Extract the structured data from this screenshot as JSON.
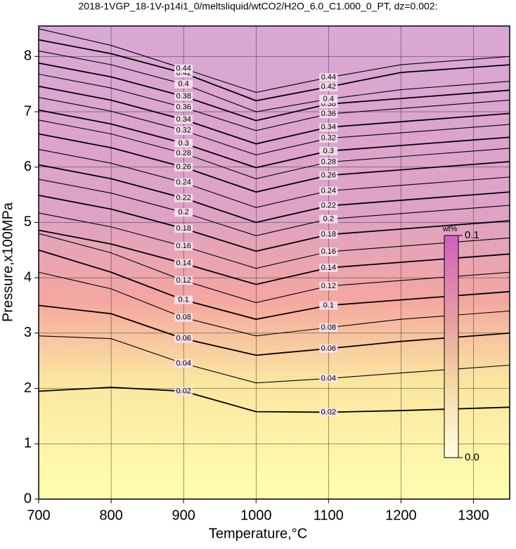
{
  "chart_data": {
    "type": "contour",
    "title": "2018-1VGP_18-1V-p14i1_0/meltsliquid/wtCO2/H2O_6.0_C1.000_0_PT, dz=0.002:",
    "xlabel": "Temperature,°C",
    "ylabel": "Pressure,x100MPa",
    "xlim": [
      700,
      1350
    ],
    "ylim": [
      0,
      8.55
    ],
    "xticks": [
      700,
      800,
      900,
      1000,
      1100,
      1200,
      1300
    ],
    "yticks": [
      0,
      1,
      2,
      3,
      4,
      5,
      6,
      7,
      8
    ],
    "grid": true,
    "color": "#000000",
    "colorbar": {
      "label": "wt%",
      "clim": [
        0,
        0.1
      ],
      "ticks": [
        {
          "value": 0,
          "label": "0.0"
        },
        0.1
      ]
    },
    "x": [
      700,
      800,
      900,
      1000,
      1100,
      1200,
      1350
    ],
    "contours": [
      {
        "level": 0.02,
        "values": [
          1.95,
          2.02,
          1.95,
          1.58,
          1.57,
          1.6,
          1.66
        ]
      },
      {
        "level": 0.04,
        "values": [
          2.95,
          2.9,
          2.45,
          2.1,
          2.18,
          2.28,
          2.42
        ]
      },
      {
        "level": 0.06,
        "values": [
          3.5,
          3.35,
          2.9,
          2.6,
          2.72,
          2.85,
          3.0
        ]
      },
      {
        "level": 0.08,
        "values": [
          4.1,
          3.8,
          3.28,
          2.95,
          3.1,
          3.25,
          3.4
        ]
      },
      {
        "level": 0.1,
        "values": [
          4.5,
          4.1,
          3.6,
          3.25,
          3.5,
          3.6,
          3.75
        ]
      },
      {
        "level": 0.12,
        "values": [
          4.8,
          4.45,
          3.95,
          3.55,
          3.85,
          3.95,
          4.1
        ]
      },
      {
        "level": 0.14,
        "values": [
          4.86,
          4.61,
          4.26,
          3.88,
          4.18,
          4.28,
          4.43
        ]
      },
      {
        "level": 0.16,
        "values": [
          5.17,
          4.92,
          4.57,
          4.17,
          4.47,
          4.57,
          4.72
        ]
      },
      {
        "level": 0.18,
        "values": [
          5.49,
          5.24,
          4.89,
          4.48,
          4.78,
          4.88,
          5.03
        ]
      },
      {
        "level": 0.2,
        "values": [
          5.78,
          5.53,
          5.18,
          4.76,
          5.06,
          5.16,
          5.31
        ]
      },
      {
        "level": 0.22,
        "values": [
          6.04,
          5.79,
          5.44,
          5.0,
          5.3,
          5.4,
          5.55
        ]
      },
      {
        "level": 0.24,
        "values": [
          6.32,
          6.07,
          5.72,
          5.27,
          5.57,
          5.67,
          5.82
        ]
      },
      {
        "level": 0.26,
        "values": [
          6.6,
          6.35,
          6.0,
          5.55,
          5.85,
          5.95,
          6.1
        ]
      },
      {
        "level": 0.28,
        "values": [
          6.85,
          6.6,
          6.25,
          5.79,
          6.09,
          6.19,
          6.34
        ]
      },
      {
        "level": 0.3,
        "values": [
          7.03,
          6.78,
          6.43,
          5.99,
          6.29,
          6.39,
          6.54
        ]
      },
      {
        "level": 0.32,
        "values": [
          7.26,
          7.01,
          6.66,
          6.22,
          6.52,
          6.62,
          6.77
        ]
      },
      {
        "level": 0.34,
        "values": [
          7.46,
          7.21,
          6.86,
          6.42,
          6.72,
          6.82,
          6.97
        ]
      },
      {
        "level": 0.36,
        "values": [
          7.68,
          7.43,
          7.08,
          6.66,
          6.96,
          7.06,
          7.21
        ]
      },
      {
        "level": 0.38,
        "values": [
          7.88,
          7.63,
          7.28,
          6.84,
          7.14,
          7.24,
          7.39
        ]
      },
      {
        "level": 0.4,
        "values": [
          8.1,
          7.85,
          7.5,
          7.0,
          7.23,
          7.4,
          7.55
        ]
      },
      {
        "level": 0.42,
        "values": [
          8.3,
          8.05,
          7.7,
          7.2,
          7.45,
          7.71,
          7.85
        ]
      },
      {
        "level": 0.44,
        "values": [
          8.5,
          8.2,
          7.78,
          7.35,
          7.62,
          7.85,
          8.0
        ]
      }
    ]
  }
}
